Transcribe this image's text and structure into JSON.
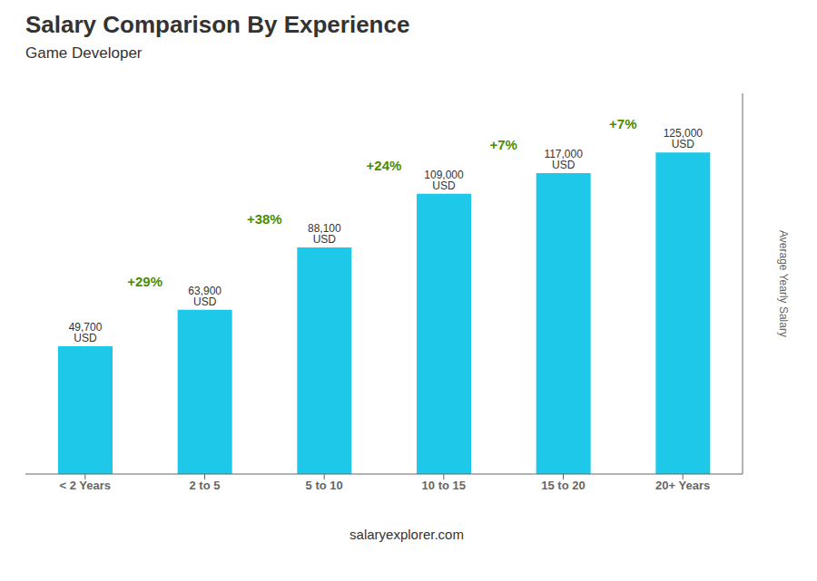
{
  "chart_data": {
    "type": "bar",
    "title": "Salary Comparison By Experience",
    "subtitle": "Game Developer",
    "y_label": "Average Yearly Salary",
    "categories": [
      "< 2 Years",
      "2 to 5",
      "5 to 10",
      "10 to 15",
      "15 to 20",
      "20+ Years"
    ],
    "values": [
      49700,
      63900,
      88100,
      109000,
      117000,
      125000
    ],
    "value_labels": [
      "49,700 USD",
      "63,900 USD",
      "88,100 USD",
      "109,000 USD",
      "117,000 USD",
      "125,000 USD"
    ],
    "data_labels": true,
    "annotations": [
      "+29%",
      "+38%",
      "+24%",
      "+7%",
      "+7%"
    ],
    "footer": "salaryexplorer.com",
    "color": "#1EC8E8",
    "ylim": [
      0,
      148000
    ],
    "grid": false,
    "tick_labels": "x"
  }
}
